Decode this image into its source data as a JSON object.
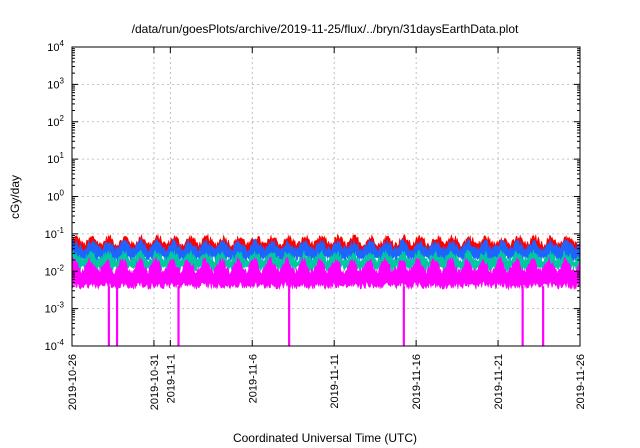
{
  "chart_data": {
    "type": "line",
    "title": "/data/run/goesPlots/archive/2019-11-25/flux/../bryn/31daysEarthData.plot",
    "xlabel": "Coordinated Universal Time (UTC)",
    "ylabel": "cGy/day",
    "yscale": "log",
    "ylim": [
      0.0001,
      10000
    ],
    "xlim": [
      "2019-10-26",
      "2019-11-26"
    ],
    "grid": true,
    "x_ticks": [
      "2019-10-26",
      "2019-10-31",
      "2019-11-1",
      "2019-11-6",
      "2019-11-11",
      "2019-11-16",
      "2019-11-21",
      "2019-11-26"
    ],
    "y_ticks": [
      {
        "value": 0.0001,
        "base": "10",
        "exp": "-4"
      },
      {
        "value": 0.001,
        "base": "10",
        "exp": "-3"
      },
      {
        "value": 0.01,
        "base": "10",
        "exp": "-2"
      },
      {
        "value": 0.1,
        "base": "10",
        "exp": "-1"
      },
      {
        "value": 1,
        "base": "10",
        "exp": "0"
      },
      {
        "value": 10,
        "base": "10",
        "exp": "1"
      },
      {
        "value": 100,
        "base": "10",
        "exp": "2"
      },
      {
        "value": 1000,
        "base": "10",
        "exp": "3"
      },
      {
        "value": 10000,
        "base": "10",
        "exp": "4"
      }
    ],
    "series": [
      {
        "color": "#ff0000",
        "low": 0.03,
        "high": 0.08
      },
      {
        "color": "#1e64ff",
        "low": 0.022,
        "high": 0.06
      },
      {
        "color": "#00c8a0",
        "low": 0.012,
        "high": 0.03
      },
      {
        "color": "#ff00ff",
        "low": 0.004,
        "high": 0.02
      }
    ],
    "dropouts": [
      "2019-10-28T06:00",
      "2019-10-28T18:00",
      "2019-11-01T12:00",
      "2019-11-08T06:00",
      "2019-11-15T06:00",
      "2019-11-22T12:00",
      "2019-11-23T18:00"
    ]
  }
}
